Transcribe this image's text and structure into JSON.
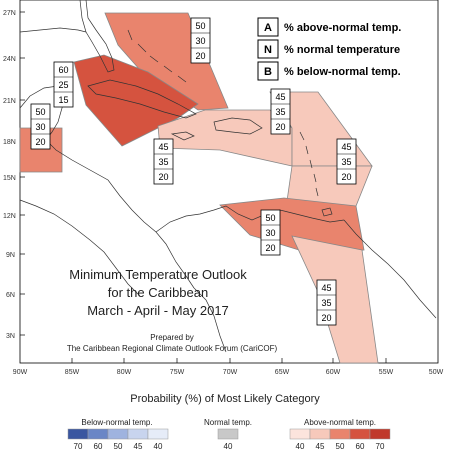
{
  "map": {
    "lat_labels": [
      "27N",
      "24N",
      "21N",
      "18N",
      "15N",
      "12N",
      "9N",
      "6N",
      "3N"
    ],
    "lon_labels": [
      "90W",
      "85W",
      "80W",
      "75W",
      "70W",
      "65W",
      "60W",
      "55W",
      "50W"
    ],
    "title_lines": [
      "Minimum Temperature Outlook",
      "for the Caribbean",
      "March - April - May 2017"
    ],
    "prepared_lines": [
      "Prepared by",
      "The Caribbean Regional Climate Outlook Forum (CariCOF)"
    ]
  },
  "key": [
    {
      "letter": "A",
      "text": "% above-normal temp."
    },
    {
      "letter": "N",
      "text": "% normal temperature"
    },
    {
      "letter": "B",
      "text": "% below-normal temp."
    }
  ],
  "zones": [
    {
      "id": "bahamas",
      "fill": "#e9846d",
      "probs": [
        "50",
        "30",
        "20"
      ]
    },
    {
      "id": "cuba",
      "fill": "#d5533f",
      "probs": [
        "60",
        "25",
        "15"
      ]
    },
    {
      "id": "belize",
      "fill": "#e9846d",
      "probs": [
        "50",
        "30",
        "20"
      ]
    },
    {
      "id": "greater-antilles",
      "fill": "#f7c9bb",
      "probs": [
        "45",
        "35",
        "20"
      ]
    },
    {
      "id": "central-caribbean",
      "fill": "#f7c9bb",
      "probs": [
        "45",
        "35",
        "20"
      ]
    },
    {
      "id": "eastern-caribbean",
      "fill": "#f7c9bb",
      "probs": [
        "45",
        "35",
        "20"
      ]
    },
    {
      "id": "southern-caribbean",
      "fill": "#e9846d",
      "probs": [
        "50",
        "30",
        "20"
      ]
    },
    {
      "id": "guianas",
      "fill": "#f7c9bb",
      "probs": [
        "45",
        "35",
        "20"
      ]
    }
  ],
  "legend": {
    "title": "Probability (%) of Most Likely Category",
    "below": {
      "label": "Below-normal temp.",
      "values": [
        "70",
        "60",
        "50",
        "45",
        "40"
      ],
      "colors": [
        "#3a56a0",
        "#6a86c6",
        "#9fb3df",
        "#c8d4ee",
        "#e6ecf8"
      ]
    },
    "normal": {
      "label": "Normal temp.",
      "values": [
        "40"
      ],
      "colors": [
        "#c8c8c8"
      ]
    },
    "above": {
      "label": "Above-normal temp.",
      "values": [
        "40",
        "45",
        "50",
        "60",
        "70"
      ],
      "colors": [
        "#fce4dd",
        "#f7c9bb",
        "#e9846d",
        "#d5533f",
        "#c0392b"
      ]
    }
  }
}
